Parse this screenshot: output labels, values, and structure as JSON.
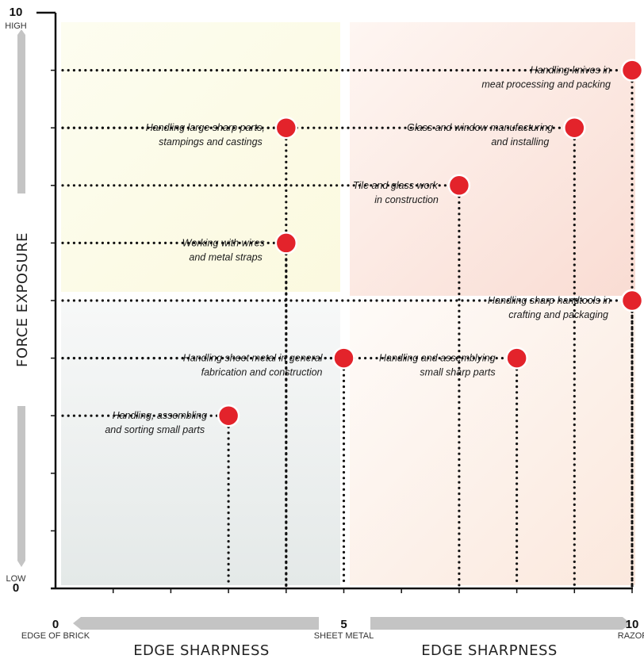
{
  "chart_data": {
    "type": "scatter",
    "xlabel": "EDGE SHARPNESS",
    "ylabel": "FORCE EXPOSURE",
    "xlim": [
      0,
      10
    ],
    "ylim": [
      0,
      10
    ],
    "x_ticks": [
      {
        "value": 0,
        "num": "0",
        "word": "EDGE OF BRICK"
      },
      {
        "value": 5,
        "num": "5",
        "word": "SHEET METAL"
      },
      {
        "value": 10,
        "num": "10",
        "word": "RAZOR"
      }
    ],
    "y_ticks": [
      {
        "value": 10,
        "num": "10",
        "word": "HIGH"
      },
      {
        "value": 0,
        "num": "0",
        "word": "LOW"
      }
    ],
    "marker_color": "#e3232b",
    "quadrant_colors": {
      "top_left": "#fcfcec",
      "top_right": "#fbe3dc",
      "bottom_left": "#e8ecea",
      "bottom_right": "#fdf0e8"
    },
    "points": [
      {
        "x": 10,
        "y": 9,
        "label": [
          "Handling knives in",
          "meat processing and packing"
        ]
      },
      {
        "x": 4,
        "y": 8,
        "label": [
          "Handling large sharp parts,",
          "stampings and castings"
        ]
      },
      {
        "x": 9,
        "y": 8,
        "label": [
          "Glass and window manufacturing",
          "and installing"
        ]
      },
      {
        "x": 7,
        "y": 7,
        "label": [
          "Tile and glass work",
          "in construction"
        ]
      },
      {
        "x": 4,
        "y": 6,
        "label": [
          "Working with wires",
          "and metal straps"
        ]
      },
      {
        "x": 10,
        "y": 5,
        "label": [
          "Handling sharp handtools in",
          "crafting and packaging"
        ]
      },
      {
        "x": 5,
        "y": 4,
        "label": [
          "Handling sheet metal in general",
          "fabrication and construction"
        ]
      },
      {
        "x": 8,
        "y": 4,
        "label": [
          "Handling and assemblying",
          "small sharp parts"
        ]
      },
      {
        "x": 3,
        "y": 3,
        "label": [
          "Handling, assembling",
          "and sorting small parts"
        ]
      }
    ]
  }
}
